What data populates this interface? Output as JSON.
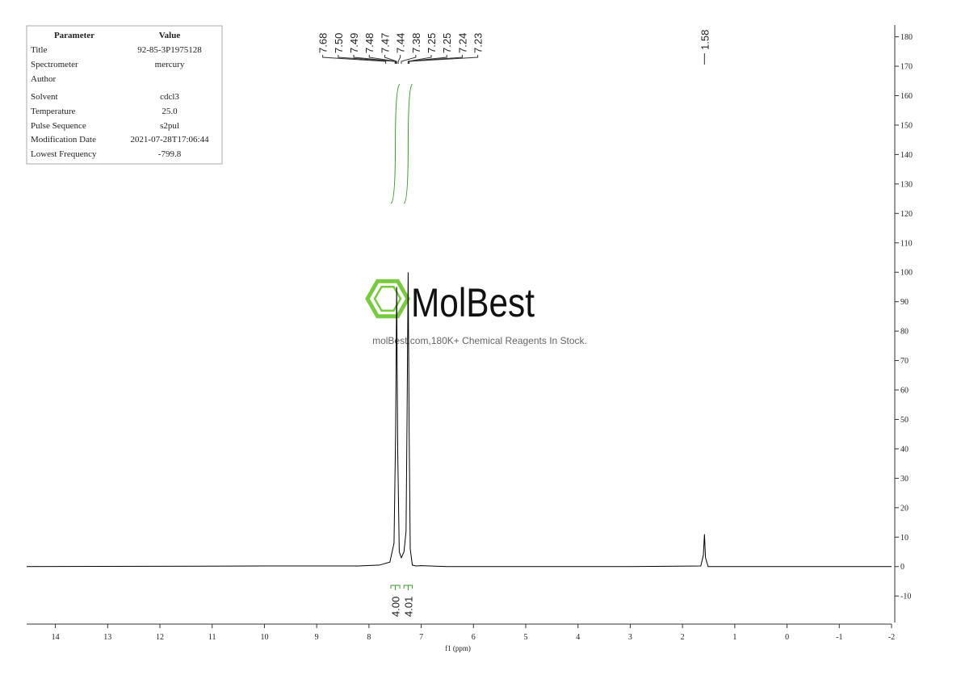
{
  "chart_data": {
    "type": "nmr",
    "x_label": "f1 (ppm)",
    "xlim": [
      14.55,
      -2
    ],
    "xticks": [
      14,
      13,
      12,
      11,
      10,
      9,
      8,
      7,
      6,
      5,
      4,
      3,
      2,
      1,
      0,
      -1,
      -2
    ],
    "ylim": [
      -19,
      184
    ],
    "yticks": [
      -10,
      0,
      10,
      20,
      30,
      40,
      50,
      60,
      70,
      80,
      90,
      100,
      110,
      120,
      130,
      140,
      150,
      160,
      170,
      180
    ],
    "x": [
      14.55,
      10,
      8.2,
      7.8,
      7.6,
      7.52,
      7.49,
      7.47,
      7.45,
      7.42,
      7.38,
      7.33,
      7.29,
      7.27,
      7.25,
      7.23,
      7.21,
      7.17,
      7.1,
      7.0,
      6.5,
      3,
      1.65,
      1.6,
      1.58,
      1.56,
      1.51,
      0,
      -2
    ],
    "series": [
      {
        "color": "#000000",
        "values": [
          0,
          0.2,
          0.2,
          0.5,
          1.5,
          8,
          45,
          95,
          40,
          5,
          3,
          5,
          12,
          52,
          100,
          45,
          6,
          0.5,
          0.2,
          0.3,
          0,
          0,
          0.2,
          4,
          11,
          3,
          0,
          0,
          0
        ]
      }
    ],
    "peak_labels": [
      7.68,
      {
        "value": 7.5,
        "label": "7.50"
      },
      7.49,
      7.48,
      7.47,
      7.44,
      7.38,
      7.25,
      7.25,
      7.24,
      7.23,
      1.58
    ],
    "integrals": {
      "color": "#3a9a2a",
      "ranges": [
        [
          7.58,
          7.41
        ],
        [
          7.33,
          7.17
        ]
      ],
      "values": [
        4,
        4.01
      ],
      "value_labels": [
        "4.00",
        "4.01"
      ]
    }
  },
  "parameters": {
    "header": [
      "Parameter",
      "Value"
    ],
    "rows": [
      [
        "Title",
        "92-85-3P1975128"
      ],
      [
        "Spectrometer",
        "mercury"
      ],
      [
        "Author"
      ],
      [
        "Solvent",
        "cdcl3"
      ],
      [
        "Temperature",
        "25.0"
      ],
      [
        "Pulse Sequence",
        "s2pul"
      ],
      [
        "Modification Date",
        "2021-07-28T17:06:44"
      ],
      [
        "Lowest Frequency",
        "-799.8"
      ]
    ]
  },
  "watermark": {
    "logo": "MolBest",
    "text": "molBest.com,180K+ Chemical Reagents In Stock."
  }
}
